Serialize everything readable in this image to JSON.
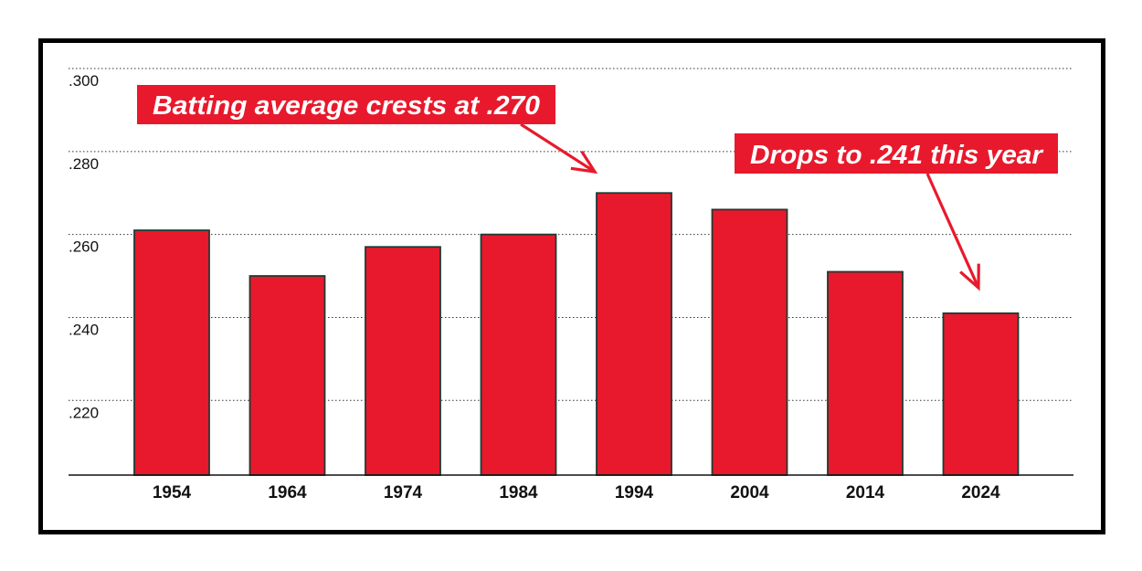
{
  "chart_data": {
    "type": "bar",
    "title": "",
    "xlabel": "",
    "ylabel": "",
    "categories": [
      "1954",
      "1964",
      "1974",
      "1984",
      "1994",
      "2004",
      "2014",
      "2024"
    ],
    "values": [
      0.261,
      0.25,
      0.257,
      0.26,
      0.27,
      0.266,
      0.251,
      0.241
    ],
    "ylim": [
      0.202,
      0.3
    ],
    "yticks": [
      0.22,
      0.24,
      0.26,
      0.28,
      0.3
    ],
    "ytick_labels": [
      ".220",
      ".240",
      ".260",
      ".280",
      ".300"
    ],
    "grid": "dotted horizontal",
    "bar_color": "#e8192c",
    "bar_edge_color": "#1f3a33",
    "annotations": [
      {
        "text": "Batting average crests at .270",
        "target_category": "1994"
      },
      {
        "text": "Drops to .241 this year",
        "target_category": "2024"
      }
    ]
  }
}
